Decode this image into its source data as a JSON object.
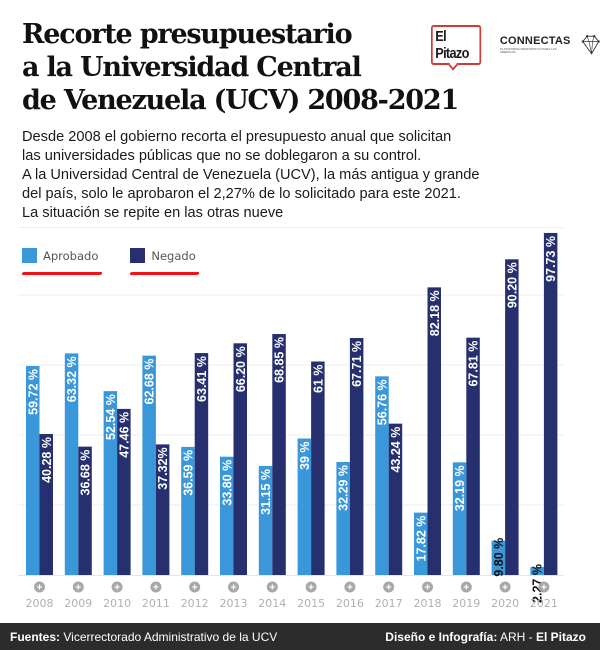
{
  "header": {
    "title_lines": [
      "Recorte presupuestario",
      "a la Universidad Central",
      "de Venezuela (UCV) 2008-2021"
    ],
    "logos": {
      "pitazo": "El Pitazo",
      "connectas": "CONNECTAS",
      "connectas_tagline": "PLATAFORMA PERIODÍSTICA PARA LAS AMÉRICAS"
    }
  },
  "description_lines": [
    "Desde 2008 el gobierno recorta el presupuesto anual que solicitan",
    "las universidades públicas que no se doblegaron a su control.",
    "A la Universidad Central de Venezuela (UCV), la más antigua y grande",
    "del país, solo le aprobaron el 2,27% de lo solicitado para este 2021.",
    "La situación se repite en las otras nueve"
  ],
  "colors": {
    "aprobado": "#3a97d9",
    "negado": "#27306f",
    "legend_underline": "#f21414",
    "footer_bg": "#2c2c2c"
  },
  "chart_data": {
    "type": "bar",
    "title": "Recorte presupuestario a la Universidad Central de Venezuela (UCV) 2008-2021",
    "xlabel": "",
    "ylabel": "",
    "ylim": [
      0,
      100
    ],
    "grid": true,
    "legend_position": "top-left",
    "categories": [
      "2008",
      "2009",
      "2010",
      "2011",
      "2012",
      "2013",
      "2014",
      "2015",
      "2016",
      "2017",
      "2018",
      "2019",
      "2020",
      "2021"
    ],
    "series": [
      {
        "name": "Aprobado",
        "values": [
          59.72,
          63.32,
          52.54,
          62.68,
          36.59,
          33.8,
          31.15,
          39,
          32.29,
          56.76,
          17.82,
          32.19,
          9.8,
          2.27
        ],
        "labels": [
          "59.72 %",
          "63.32 %",
          "52.54 %",
          "62.68 %",
          "36.59 %",
          "33.80 %",
          "31.15 %",
          "39 %",
          "32.29 %",
          "56.76 %",
          "17.82 %",
          "32.19 %",
          "9.80 %",
          "2.27 %"
        ]
      },
      {
        "name": "Negado",
        "values": [
          40.28,
          36.68,
          47.46,
          37.32,
          63.41,
          66.2,
          68.85,
          61,
          67.71,
          43.24,
          82.18,
          67.81,
          90.2,
          97.73
        ],
        "labels": [
          "40.28 %",
          "36.68 %",
          "47.46 %",
          "37.32%",
          "63.41 %",
          "66.20 %",
          "68.85 %",
          "61 %",
          "67.71 %",
          "43.24 %",
          "82.18 %",
          "67.81 %",
          "90.20 %",
          "97.73 %"
        ]
      }
    ]
  },
  "footer": {
    "sources_label": "Fuentes:",
    "sources_value": "Vicerrectorado Administrativo de la UCV",
    "credits_label": "Diseño e Infografía:",
    "credits_value": "ARH - ",
    "credits_brand": "El Pitazo"
  }
}
